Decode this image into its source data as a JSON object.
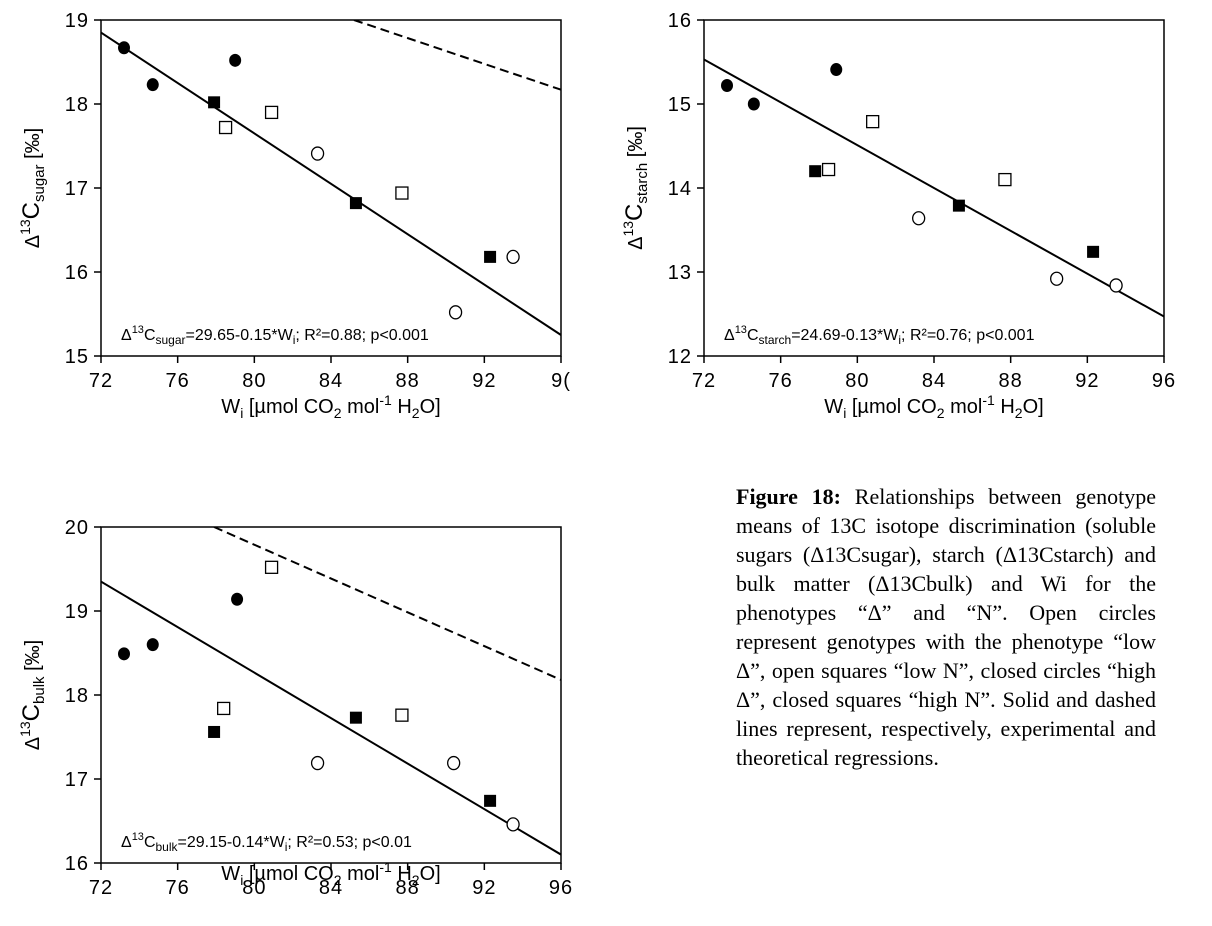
{
  "chart_data": [
    {
      "type": "scatter",
      "xlabel": "Wi [µmol CO2 mol-1 H2O]",
      "ylabel": "Δ13Csugar [‰]",
      "xlim": [
        72,
        96
      ],
      "ylim": [
        15,
        19
      ],
      "xticks": [
        "72",
        "76",
        "80",
        "84",
        "88",
        "92",
        "9("
      ],
      "yticks": [
        "15",
        "16",
        "17",
        "18",
        "19"
      ],
      "equation": "Δ13Csugar=29.65-0.15*Wi; R²=0.88; p<0.001",
      "series": [
        {
          "marker": "closed-circle",
          "points": [
            [
              73.2,
              18.67
            ],
            [
              74.7,
              18.23
            ],
            [
              79.0,
              18.52
            ]
          ]
        },
        {
          "marker": "closed-square",
          "points": [
            [
              77.9,
              18.02
            ],
            [
              85.3,
              16.82
            ],
            [
              92.3,
              16.18
            ]
          ]
        },
        {
          "marker": "open-square",
          "points": [
            [
              78.5,
              17.72
            ],
            [
              80.9,
              17.9
            ],
            [
              87.7,
              16.94
            ]
          ]
        },
        {
          "marker": "open-circle",
          "points": [
            [
              83.3,
              17.41
            ],
            [
              90.5,
              15.52
            ],
            [
              93.5,
              16.18
            ]
          ]
        }
      ],
      "solid_line": {
        "intercept": 29.65,
        "slope": -0.15
      },
      "dashed_line": [
        [
          85.2,
          19.0
        ],
        [
          96,
          18.17
        ]
      ]
    },
    {
      "type": "scatter",
      "xlabel": "Wi [µmol CO2 mol-1 H2O]",
      "ylabel": "Δ13Cstarch [‰]",
      "xlim": [
        72,
        96
      ],
      "ylim": [
        12,
        16
      ],
      "xticks": [
        "72",
        "76",
        "80",
        "84",
        "88",
        "92",
        "96"
      ],
      "yticks": [
        "12",
        "13",
        "14",
        "15",
        "16"
      ],
      "equation": "Δ13Cstarch=24.69-0.13*Wi; R²=0.76; p<0.001",
      "series": [
        {
          "marker": "closed-circle",
          "points": [
            [
              73.2,
              15.22
            ],
            [
              74.6,
              15.0
            ],
            [
              78.9,
              15.41
            ]
          ]
        },
        {
          "marker": "closed-square",
          "points": [
            [
              77.8,
              14.2
            ],
            [
              85.3,
              13.79
            ],
            [
              92.3,
              13.24
            ]
          ]
        },
        {
          "marker": "open-square",
          "points": [
            [
              78.5,
              14.22
            ],
            [
              80.8,
              14.79
            ],
            [
              87.7,
              14.1
            ]
          ]
        },
        {
          "marker": "open-circle",
          "points": [
            [
              83.2,
              13.64
            ],
            [
              90.4,
              12.92
            ],
            [
              93.5,
              12.84
            ]
          ]
        }
      ],
      "solid_line": {
        "points": [
          [
            72,
            15.53
          ],
          [
            96,
            12.47
          ]
        ]
      }
    },
    {
      "type": "scatter",
      "xlabel": "Wi [µmol CO2 mol-1 H2O]",
      "ylabel": "Δ13Cbulk [‰]",
      "xlim": [
        72,
        96
      ],
      "ylim": [
        16,
        20
      ],
      "xticks": [
        "72",
        "76",
        "80",
        "84",
        "88",
        "92",
        "96"
      ],
      "yticks": [
        "16",
        "17",
        "18",
        "19",
        "20"
      ],
      "equation": "Δ13Cbulk=29.15-0.14*Wi; R²=0.53; p<0.01",
      "series": [
        {
          "marker": "closed-circle",
          "points": [
            [
              73.2,
              18.49
            ],
            [
              74.7,
              18.6
            ],
            [
              79.1,
              19.14
            ]
          ]
        },
        {
          "marker": "closed-square",
          "points": [
            [
              77.9,
              17.56
            ],
            [
              85.3,
              17.73
            ],
            [
              92.3,
              16.74
            ]
          ]
        },
        {
          "marker": "open-square",
          "points": [
            [
              78.4,
              17.84
            ],
            [
              80.9,
              19.52
            ],
            [
              87.7,
              17.76
            ]
          ]
        },
        {
          "marker": "open-circle",
          "points": [
            [
              83.3,
              17.19
            ],
            [
              90.4,
              17.19
            ],
            [
              93.5,
              16.46
            ]
          ]
        }
      ],
      "solid_line": {
        "points": [
          [
            72,
            19.35
          ],
          [
            96,
            16.1
          ]
        ]
      },
      "dashed_line": [
        [
          77.9,
          20.0
        ],
        [
          96,
          18.18
        ]
      ]
    }
  ],
  "caption": {
    "label": "Figure 18:",
    "text": " Relationships between genotype means of 13C isotope discrimination (soluble sugars (Δ13Csugar), starch (Δ13Cstarch) and bulk matter (Δ13Cbulk) and Wi for the phenotypes “Δ” and “N”. Open circles represent genotypes with the phenotype “low Δ”, open squares “low N”, closed circles “high Δ”, closed squares “high N”. Solid and dashed lines represent, respectively, experimental and theoretical regressions."
  }
}
